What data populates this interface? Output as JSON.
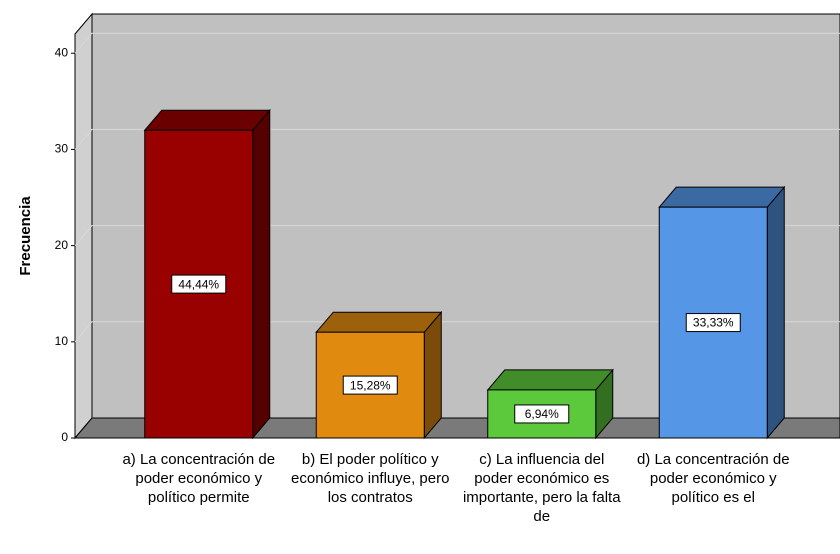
{
  "chart_data": {
    "type": "bar3d",
    "ylabel": "Frecuencia",
    "categories": [
      "a) La concentración de poder económico y político permite",
      "b) El poder político y económico influye, pero los contratos",
      "c) La influencia del poder económico es importante, pero la falta de",
      "d) La concentración de poder económico y político es el"
    ],
    "values": [
      32,
      11,
      5,
      24
    ],
    "percent_labels": [
      "44,44%",
      "15,28%",
      "6,94%",
      "33,33%"
    ],
    "colors": [
      "#990000",
      "#e08a10",
      "#5cc93c",
      "#5596e6"
    ],
    "ylim": [
      0,
      42
    ],
    "yticks": [
      0,
      10,
      20,
      30,
      40
    ],
    "grid": true
  }
}
